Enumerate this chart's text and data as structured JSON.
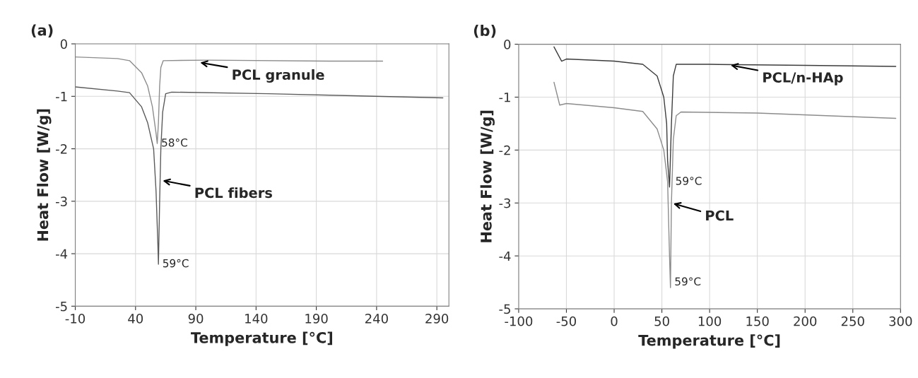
{
  "chart_data": [
    {
      "type": "line",
      "title": "(a)",
      "xlabel": "Temperature [°C]",
      "ylabel": "Heat Flow [W/g]",
      "xlim": [
        -10,
        300
      ],
      "xticks": [
        -10,
        40,
        90,
        140,
        190,
        240,
        290
      ],
      "ylim": [
        -5,
        0
      ],
      "yticks": [
        -5,
        -4,
        -3,
        -2,
        -1,
        0
      ],
      "grid": true,
      "line_style": "solid",
      "series": [
        {
          "color": "#8c8c8c",
          "x": [
            -10,
            25,
            35,
            45,
            50,
            54,
            57,
            58,
            59,
            60,
            61,
            63,
            100,
            200,
            245
          ],
          "values": [
            -0.25,
            -0.28,
            -0.32,
            -0.55,
            -0.8,
            -1.2,
            -1.7,
            -1.9,
            -1.5,
            -0.8,
            -0.45,
            -0.32,
            -0.31,
            -0.33,
            -0.33
          ]
        },
        {
          "color": "#5a5a5a",
          "x": [
            -10,
            25,
            35,
            45,
            50,
            55,
            57,
            58.5,
            59,
            60,
            61,
            62.5,
            65,
            70,
            150,
            295
          ],
          "values": [
            -0.82,
            -0.9,
            -0.93,
            -1.2,
            -1.5,
            -2.0,
            -2.8,
            -3.8,
            -4.2,
            -3.0,
            -2.0,
            -1.3,
            -0.95,
            -0.92,
            -0.95,
            -1.03
          ]
        }
      ],
      "annotations": [
        {
          "text": "PCL granule",
          "x": 92,
          "y": -0.35
        },
        {
          "text": "PCL fibers",
          "x": 61,
          "y": -2.6
        },
        {
          "text": "58°C",
          "x": 58,
          "y": -1.9
        },
        {
          "text": "59°C",
          "x": 59,
          "y": -4.2
        }
      ]
    },
    {
      "type": "line",
      "title": "(b)",
      "xlabel": "Temperature [°C]",
      "ylabel": "Heat Flow [W/g]",
      "xlim": [
        -100,
        300
      ],
      "xticks": [
        -100,
        -50,
        0,
        50,
        100,
        150,
        200,
        250,
        300
      ],
      "ylim": [
        -5,
        0
      ],
      "yticks": [
        -5,
        -4,
        -3,
        -2,
        -1,
        0
      ],
      "grid": true,
      "line_style": "solid",
      "series": [
        {
          "color": "#3c3c3c",
          "x": [
            -63,
            -55,
            -50,
            0,
            30,
            45,
            52,
            55,
            56,
            58,
            60,
            62,
            65,
            100,
            200,
            295
          ],
          "values": [
            -0.05,
            -0.32,
            -0.28,
            -0.32,
            -0.38,
            -0.6,
            -1.0,
            -1.5,
            -2.2,
            -2.7,
            -1.5,
            -0.6,
            -0.38,
            -0.38,
            -0.4,
            -0.42
          ]
        },
        {
          "color": "#8c8c8c",
          "x": [
            -63,
            -57,
            -50,
            0,
            30,
            45,
            52,
            56,
            58,
            59,
            60,
            62,
            65,
            70,
            150,
            295
          ],
          "values": [
            -0.72,
            -1.15,
            -1.12,
            -1.2,
            -1.27,
            -1.6,
            -2.0,
            -2.6,
            -4.0,
            -4.6,
            -3.0,
            -1.8,
            -1.35,
            -1.28,
            -1.3,
            -1.4
          ]
        }
      ],
      "annotations": [
        {
          "text": "PCL/n-HAp",
          "x": 120,
          "y": -0.39
        },
        {
          "text": "PCL",
          "x": 60,
          "y": -3.0
        },
        {
          "text": "59°C",
          "x": 60,
          "y": -2.6
        },
        {
          "text": "59°C",
          "x": 59,
          "y": -4.5
        }
      ]
    }
  ]
}
